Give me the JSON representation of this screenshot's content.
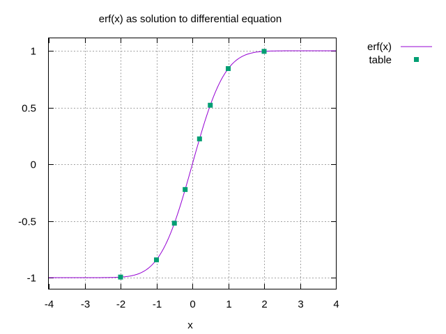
{
  "chart_data": {
    "type": "line",
    "title": "erf(x) as solution to differential equation",
    "xlabel": "x",
    "ylabel": "",
    "xlim": [
      -4,
      4
    ],
    "ylim": [
      -1.1,
      1.1
    ],
    "xticks": [
      -4,
      -3,
      -2,
      -1,
      0,
      1,
      2,
      3,
      4
    ],
    "xtick_labels": [
      "-4",
      "-3",
      "-2",
      "-1",
      "0",
      "1",
      "2",
      "3",
      "4"
    ],
    "yticks": [
      1,
      0.5,
      0,
      -0.5,
      -1
    ],
    "ytick_labels": [
      "1",
      "0.5",
      "0",
      "-0.5",
      "-1"
    ],
    "grid": true,
    "legend_position": "outside top-right",
    "series": [
      {
        "name": "erf(x)",
        "kind": "line",
        "color": "#9400d3",
        "function": "erf(x)"
      },
      {
        "name": "table",
        "kind": "points",
        "marker": "square",
        "color": "#009e73",
        "x": [
          -2,
          -1,
          -0.5,
          -0.2,
          0.2,
          0.5,
          1,
          2
        ],
        "y": [
          -0.995,
          -0.843,
          -0.52,
          -0.223,
          0.223,
          0.52,
          0.843,
          0.995
        ]
      }
    ]
  }
}
